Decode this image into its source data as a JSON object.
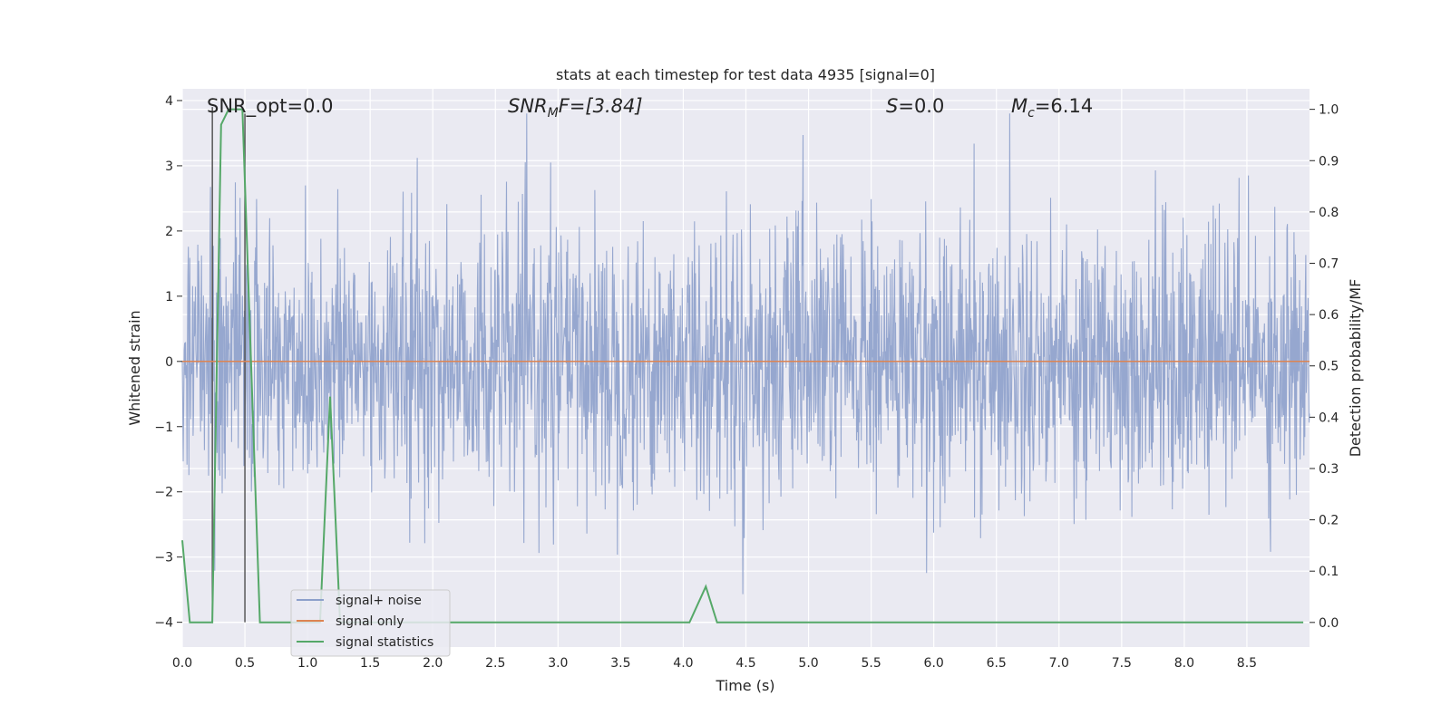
{
  "chart_data": {
    "type": "line",
    "title": "stats at each timestep for test data 4935 [signal=0]",
    "xlabel": "Time (s)",
    "ylabel_left": "Whitened strain",
    "ylabel_right": "Detection probability/MF",
    "xlim": [
      0.0,
      9.0
    ],
    "ylim_left": [
      -4.38,
      4.18
    ],
    "ylim_right": [
      -0.048,
      1.04
    ],
    "xticks": [
      "0.0",
      "0.5",
      "1.0",
      "1.5",
      "2.0",
      "2.5",
      "3.0",
      "3.5",
      "4.0",
      "4.5",
      "5.0",
      "5.5",
      "6.0",
      "6.5",
      "7.0",
      "7.5",
      "8.0",
      "8.5"
    ],
    "yticks_left": [
      "−4",
      "−3",
      "−2",
      "−1",
      "0",
      "1",
      "2",
      "3",
      "4"
    ],
    "yticks_right": [
      "0.0",
      "0.1",
      "0.2",
      "0.3",
      "0.4",
      "0.5",
      "0.6",
      "0.7",
      "0.8",
      "0.9",
      "1.0"
    ],
    "grid": true,
    "legend_position": "lower-left",
    "annotations": {
      "snr_opt": "SNR_opt=0.0",
      "snr_mf_main": "SNR",
      "snr_mf_sub": "M",
      "snr_mf_tail": "F=[3.84]",
      "s_main": "S",
      "s_tail": "=0.0",
      "mc_main": "M",
      "mc_sub": "c",
      "mc_tail": "=6.14"
    },
    "series": [
      {
        "name": "signal+ noise",
        "axis": "left",
        "color": "#8da0cb",
        "description": "dense whitened noise, roughly ±2 with peaks near ±3.8",
        "envelope": {
          "typical_high": 2.0,
          "typical_low": -2.0,
          "peak_high": 3.8,
          "peak_low": -3.7
        }
      },
      {
        "name": "signal only",
        "axis": "left",
        "color": "#dd8452",
        "x": [
          0.0,
          9.0
        ],
        "y": [
          0.0,
          0.0
        ]
      },
      {
        "name": "signal statistics",
        "axis": "right",
        "color": "#55a868",
        "x": [
          0.0,
          0.06,
          0.12,
          0.24,
          0.31,
          0.37,
          0.48,
          0.62,
          1.1,
          1.18,
          1.26,
          4.05,
          4.18,
          4.27,
          8.95
        ],
        "y": [
          0.16,
          0.0,
          0.0,
          0.0,
          0.97,
          1.0,
          1.0,
          0.0,
          0.0,
          0.44,
          0.0,
          0.0,
          0.07,
          0.0,
          0.0
        ]
      },
      {
        "name": "markers",
        "axis": "left",
        "color": "#4c4c4c",
        "x": [
          0.24,
          0.5
        ],
        "y": [
          [
            -4.0,
            3.9
          ],
          [
            -4.0,
            3.8
          ]
        ]
      }
    ]
  },
  "colors": {
    "plot_bg": "#eaeaf2",
    "grid": "#ffffff",
    "text": "#262626",
    "noise": "#8da0cb",
    "signal_only": "#dd8452",
    "statistics": "#55a868",
    "marker": "#4c4c4c"
  }
}
